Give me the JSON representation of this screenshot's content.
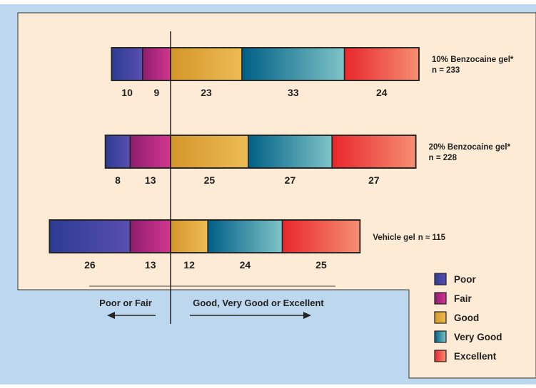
{
  "colors": {
    "panel": "#FDEBD5",
    "background": "#BDD7EE",
    "border": "#333333",
    "poor": [
      "#2B3C92",
      "#5A4EB0"
    ],
    "fair": [
      "#8E1D6E",
      "#D23690"
    ],
    "good": [
      "#D4962A",
      "#EDBC55"
    ],
    "very_good": [
      "#005F86",
      "#7FC4C8"
    ],
    "excellent": [
      "#E8262C",
      "#F68F73"
    ]
  },
  "chart_data": {
    "type": "bar",
    "subtype": "diverging-stacked-horizontal",
    "categories": [
      "10% Benzocaine gel*",
      "20% Benzocaine gel*",
      "Vehicle gel"
    ],
    "category_n": [
      "n = 233",
      "n = 228",
      "n ≈ 115"
    ],
    "series": [
      {
        "name": "Poor",
        "values": [
          10,
          8,
          26
        ]
      },
      {
        "name": "Fair",
        "values": [
          9,
          13,
          13
        ]
      },
      {
        "name": "Good",
        "values": [
          23,
          25,
          12
        ]
      },
      {
        "name": "Very Good",
        "values": [
          33,
          27,
          24
        ]
      },
      {
        "name": "Excellent",
        "values": [
          24,
          27,
          25
        ]
      }
    ],
    "legend_position": "bottom-right",
    "direction_labels": {
      "left": "Poor or Fair",
      "right": "Good, Very Good or Excellent"
    }
  }
}
